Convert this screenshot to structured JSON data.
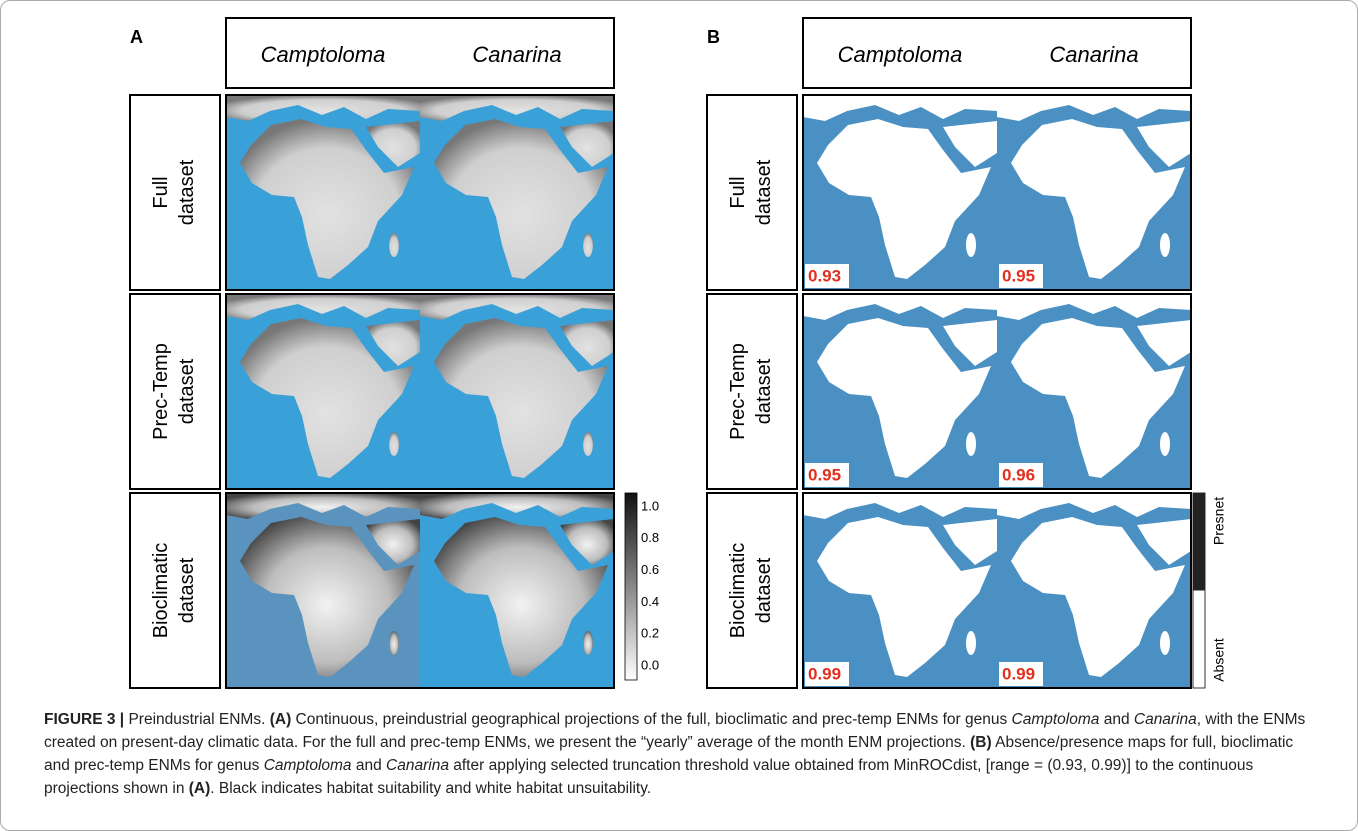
{
  "panels": [
    {
      "label": "A",
      "columns": [
        "Camptoloma",
        "Canarina"
      ],
      "rows": [
        [
          "Full",
          "dataset"
        ],
        [
          "Prec-Temp",
          "dataset"
        ],
        [
          "Bioclimatic",
          "dataset"
        ]
      ],
      "colorbar": [
        "1.0",
        "0.8",
        "0.6",
        "0.4",
        "0.2",
        "0.0"
      ]
    },
    {
      "label": "B",
      "columns": [
        "Camptoloma",
        "Canarina"
      ],
      "rows": [
        [
          "Full",
          "dataset"
        ],
        [
          "Prec-Temp",
          "dataset"
        ],
        [
          "Bioclimatic",
          "dataset"
        ]
      ],
      "scores": [
        [
          "0.93",
          "0.95"
        ],
        [
          "0.95",
          "0.96"
        ],
        [
          "0.99",
          "0.99"
        ]
      ],
      "colorbar": [
        "Presnet",
        "Absent"
      ]
    }
  ],
  "caption": [
    "FIGURE 3 |",
    " Preindustrial ENMs. ",
    "(A)",
    " Continuous, preindustrial geographical projections of the full, bioclimatic and prec-temp ENMs for genus ",
    "Camptoloma",
    " and ",
    "Canarina",
    ", with the ENMs created on present-day climatic data. For the full and prec-temp ENMs, we present the “yearly” average of the month ENM projections. ",
    "(B)",
    " Absence/presence maps for full, bioclimatic and prec-temp ENMs for genus ",
    "Camptoloma",
    " and ",
    "Canarina",
    " after applying selected truncation threshold value obtained from MinROCdist, [range = (0.93, 0.99)] to the continuous projections shown in ",
    "(A)",
    ". Black indicates habitat suitability and white habitat unsuitability."
  ]
}
